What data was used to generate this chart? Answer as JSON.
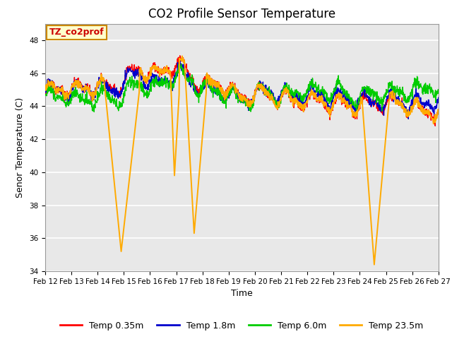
{
  "title": "CO2 Profile Sensor Temperature",
  "xlabel": "Time",
  "ylabel": "Senor Temperature (C)",
  "ylim": [
    34,
    49
  ],
  "yticks": [
    34,
    36,
    38,
    40,
    42,
    44,
    46,
    48
  ],
  "x_labels": [
    "Feb 12",
    "Feb 13",
    "Feb 14",
    "Feb 15",
    "Feb 16",
    "Feb 17",
    "Feb 18",
    "Feb 19",
    "Feb 20",
    "Feb 21",
    "Feb 22",
    "Feb 23",
    "Feb 24",
    "Feb 25",
    "Feb 26",
    "Feb 27"
  ],
  "colors": {
    "Temp 0.35m": "#ff0000",
    "Temp 1.8m": "#0000cc",
    "Temp 6.0m": "#00cc00",
    "Temp 23.5m": "#ffaa00"
  },
  "annotation_text": "TZ_co2prof",
  "annotation_bg": "#ffffcc",
  "annotation_border": "#cc8800",
  "plot_bg": "#e8e8e8",
  "axes_bg": "#ffffff",
  "grid_color": "#ffffff",
  "title_fontsize": 12,
  "axis_label_fontsize": 9,
  "tick_fontsize": 7.5,
  "legend_fontsize": 9,
  "line_width": 1.0
}
